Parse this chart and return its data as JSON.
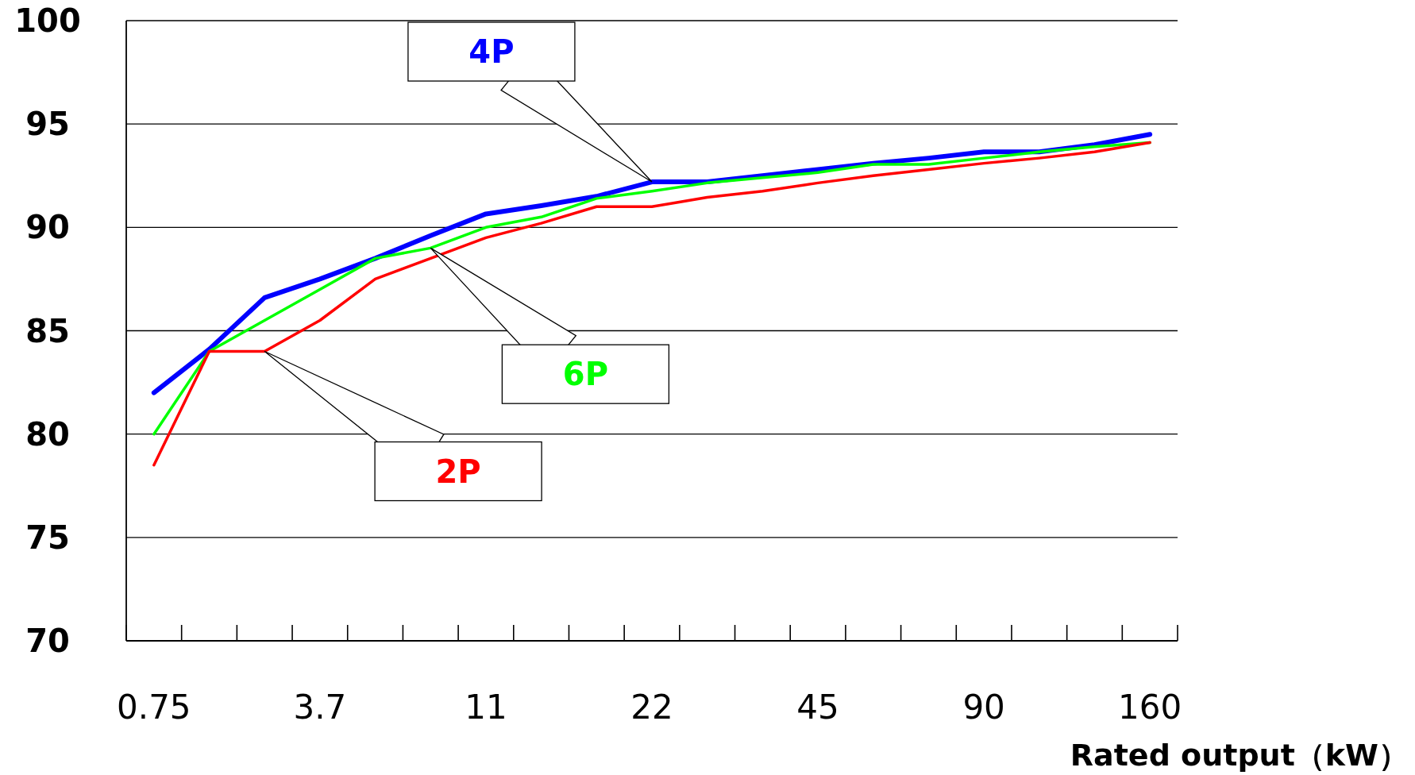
{
  "chart_data": {
    "type": "line",
    "xlabel": "Rated output（kW）",
    "categories": [
      "0.75",
      null,
      null,
      "3.7",
      null,
      null,
      "11",
      null,
      null,
      "22",
      null,
      null,
      "45",
      null,
      null,
      "90",
      null,
      null,
      "160"
    ],
    "series": [
      {
        "name": "2P",
        "color": "#ff0000",
        "values": [
          78.5,
          84.0,
          84.0,
          85.5,
          87.5,
          88.5,
          89.5,
          90.2,
          91.0,
          91.0,
          91.45,
          91.75,
          92.15,
          92.5,
          92.8,
          93.1,
          93.35,
          93.65,
          94.1
        ]
      },
      {
        "name": "4P",
        "color": "#0000ff",
        "values": [
          82.0,
          84.1,
          86.6,
          87.5,
          88.5,
          89.6,
          90.65,
          91.05,
          91.5,
          92.2,
          92.2,
          92.5,
          92.8,
          93.1,
          93.35,
          93.65,
          93.65,
          94.0,
          94.5
        ]
      },
      {
        "name": "6P",
        "color": "#00ff00",
        "values": [
          80.0,
          84.0,
          85.5,
          87.0,
          88.5,
          89.0,
          90.0,
          90.5,
          91.4,
          91.75,
          92.15,
          92.4,
          92.65,
          93.05,
          93.05,
          93.35,
          93.65,
          93.9,
          94.1
        ]
      }
    ],
    "ylim": [
      70,
      100
    ],
    "yticks": [
      70,
      75,
      80,
      85,
      90,
      95,
      100
    ],
    "grid": "y",
    "legend": false,
    "marker": "none",
    "line_style": "solid"
  }
}
